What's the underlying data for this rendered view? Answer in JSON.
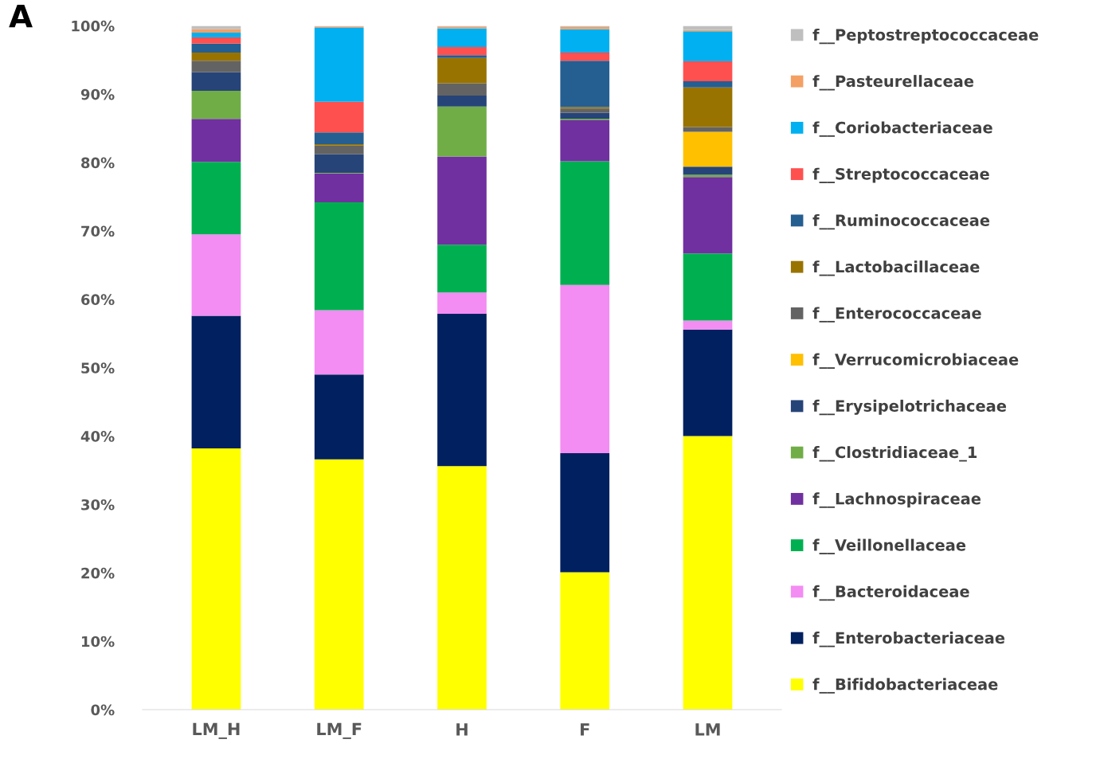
{
  "chart_data": {
    "type": "bar",
    "stacked": true,
    "annotations": [
      "A"
    ],
    "categories": [
      "LM_H",
      "LM_F",
      "H",
      "F",
      "LM"
    ],
    "series": [
      {
        "name": "f__Bifidobacteriaceae",
        "color": "#ffff00",
        "values": [
          38.2,
          36.6,
          35.6,
          20.1,
          40.0
        ]
      },
      {
        "name": "f__Enterobacteriaceae",
        "color": "#002060",
        "values": [
          19.4,
          12.4,
          22.3,
          17.4,
          15.6
        ]
      },
      {
        "name": "f__Bacteroidaceae",
        "color": "#f38cf3",
        "values": [
          11.9,
          9.4,
          3.1,
          24.6,
          1.3
        ]
      },
      {
        "name": "f__Veillonellaceae",
        "color": "#00b050",
        "values": [
          10.6,
          15.8,
          7.0,
          18.1,
          9.8
        ]
      },
      {
        "name": "f__Lachnospiraceae",
        "color": "#7030a0",
        "values": [
          6.3,
          4.2,
          12.9,
          6.0,
          11.2
        ]
      },
      {
        "name": "f__Clostridiaceae_1",
        "color": "#70ad47",
        "values": [
          4.1,
          0.1,
          7.3,
          0.2,
          0.3
        ]
      },
      {
        "name": "f__Erysipelotrichaceae",
        "color": "#264478",
        "values": [
          2.7,
          2.7,
          1.6,
          0.9,
          1.2
        ]
      },
      {
        "name": "f__Verrucomicrobiaceae",
        "color": "#ffc000",
        "values": [
          0,
          0,
          0,
          0,
          5.1
        ]
      },
      {
        "name": "f__Enterococcaceae",
        "color": "#636363",
        "values": [
          1.7,
          1.3,
          1.8,
          0.6,
          0.7
        ]
      },
      {
        "name": "f__Lactobacillaceae",
        "color": "#997300",
        "values": [
          1.2,
          0.2,
          3.7,
          0.2,
          5.8
        ]
      },
      {
        "name": "f__Ruminococcaceae",
        "color": "#255e91",
        "values": [
          1.3,
          1.7,
          0.4,
          6.8,
          0.9
        ]
      },
      {
        "name": "f__Streptococcaceae",
        "color": "#ff5050",
        "values": [
          0.9,
          4.5,
          1.2,
          1.2,
          2.9
        ]
      },
      {
        "name": "f__Coriobacteriaceae",
        "color": "#00b0f0",
        "values": [
          0.7,
          10.8,
          2.7,
          3.4,
          4.4
        ]
      },
      {
        "name": "f__Pasteurellaceae",
        "color": "#f4a064",
        "values": [
          0.5,
          0.1,
          0.2,
          0.3,
          0.2
        ]
      },
      {
        "name": "f__Peptostreptococcaceae",
        "color": "#bfbfbf",
        "values": [
          0.5,
          0.2,
          0.2,
          0.2,
          0.6
        ]
      }
    ],
    "ylim": [
      0,
      100
    ],
    "yticks": [
      {
        "value": 0,
        "label": "0%"
      },
      {
        "value": 10,
        "label": "10%"
      },
      {
        "value": 20,
        "label": "20%"
      },
      {
        "value": 30,
        "label": "30%"
      },
      {
        "value": 40,
        "label": "40%"
      },
      {
        "value": 50,
        "label": "50%"
      },
      {
        "value": 60,
        "label": "60%"
      },
      {
        "value": 70,
        "label": "70%"
      },
      {
        "value": 80,
        "label": "80%"
      },
      {
        "value": 90,
        "label": "90%"
      },
      {
        "value": 100,
        "label": "100%"
      }
    ],
    "grid": false,
    "legend": "right"
  }
}
